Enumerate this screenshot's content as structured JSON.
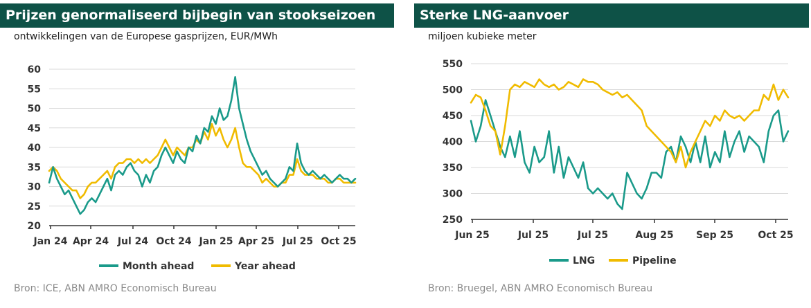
{
  "chart_data": [
    {
      "type": "line",
      "title": "Prijzen genormaliseerd bijbegin van stookseizoen",
      "subtitle": "ontwikkelingen van de Europese gasprijzen, EUR/MWh",
      "source": "Bron: ICE, ABN AMRO Economisch Bureau",
      "xlabel": "",
      "ylabel": "",
      "ylim": [
        20,
        60
      ],
      "yticks": [
        20,
        25,
        30,
        35,
        40,
        45,
        50,
        55,
        60
      ],
      "x_tick_labels": [
        "Jan 24",
        "Apr 24",
        "Jul 24",
        "Oct 24",
        "Jan 25",
        "Apr 25",
        "Jul 25",
        "Oct 25"
      ],
      "colors": {
        "Month ahead": "#1a9a8a",
        "Year ahead": "#f0bb00"
      },
      "series": [
        {
          "name": "Month ahead",
          "values": [
            31,
            35,
            32,
            30,
            28,
            29,
            27,
            25,
            23,
            24,
            26,
            27,
            26,
            28,
            30,
            32,
            29,
            33,
            34,
            33,
            35,
            36,
            34,
            33,
            30,
            33,
            31,
            34,
            35,
            38,
            40,
            38,
            36,
            39,
            37,
            36,
            40,
            39,
            43,
            41,
            45,
            44,
            48,
            46,
            50,
            47,
            48,
            52,
            58,
            50,
            46,
            42,
            39,
            37,
            35,
            33,
            34,
            32,
            31,
            30,
            31,
            32,
            35,
            34,
            41,
            36,
            34,
            33,
            34,
            33,
            32,
            33,
            32,
            31,
            32,
            33,
            32,
            32,
            31,
            32
          ]
        },
        {
          "name": "Year ahead",
          "values": [
            34,
            35,
            34,
            32,
            31,
            30,
            29,
            29,
            27,
            28,
            30,
            31,
            31,
            32,
            33,
            34,
            32,
            35,
            36,
            36,
            37,
            37,
            36,
            37,
            36,
            37,
            36,
            37,
            38,
            40,
            42,
            40,
            38,
            40,
            39,
            38,
            40,
            40,
            42,
            41,
            44,
            42,
            46,
            43,
            45,
            42,
            40,
            42,
            45,
            40,
            36,
            35,
            35,
            34,
            33,
            31,
            32,
            31,
            30,
            30,
            31,
            31,
            33,
            33,
            37,
            34,
            33,
            33,
            33,
            32,
            32,
            32,
            31,
            31,
            32,
            32,
            31,
            31,
            31,
            31
          ]
        }
      ]
    },
    {
      "type": "line",
      "title": "Sterke LNG-aanvoer",
      "subtitle": "miljoen kubieke meter",
      "source": "Bron: Bruegel, ABN AMRO Economisch Bureau",
      "xlabel": "",
      "ylabel": "",
      "ylim": [
        250,
        550
      ],
      "yticks": [
        250,
        300,
        350,
        400,
        450,
        500,
        550
      ],
      "x_tick_labels": [
        "Jun 25",
        "Jul 25",
        "Jul 25",
        "Aug 25",
        "Sep 25",
        "Oct 25"
      ],
      "colors": {
        "LNG": "#1a9a8a",
        "Pipeline": "#f0bb00"
      },
      "series": [
        {
          "name": "LNG",
          "values": [
            440,
            400,
            430,
            480,
            450,
            420,
            390,
            370,
            410,
            370,
            420,
            360,
            340,
            390,
            360,
            370,
            420,
            340,
            390,
            330,
            370,
            350,
            330,
            360,
            310,
            300,
            310,
            300,
            290,
            300,
            280,
            270,
            340,
            320,
            300,
            290,
            310,
            340,
            340,
            330,
            380,
            390,
            360,
            410,
            390,
            360,
            400,
            360,
            410,
            350,
            380,
            360,
            420,
            370,
            400,
            420,
            380,
            410,
            400,
            390,
            360,
            420,
            450,
            460,
            400,
            420
          ]
        },
        {
          "name": "Pipeline",
          "values": [
            475,
            490,
            485,
            460,
            430,
            420,
            375,
            430,
            500,
            510,
            505,
            515,
            510,
            505,
            520,
            510,
            505,
            510,
            500,
            505,
            515,
            510,
            505,
            520,
            515,
            515,
            510,
            500,
            495,
            490,
            495,
            485,
            490,
            480,
            470,
            460,
            430,
            420,
            410,
            400,
            390,
            380,
            360,
            390,
            350,
            380,
            400,
            420,
            440,
            430,
            450,
            440,
            460,
            450,
            445,
            450,
            440,
            450,
            460,
            460,
            490,
            480,
            510,
            480,
            500,
            485
          ]
        }
      ]
    }
  ]
}
